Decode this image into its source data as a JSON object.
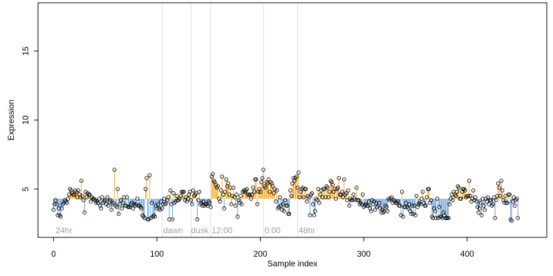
{
  "chart_data": {
    "type": "scatter",
    "xlabel": "Sample index",
    "ylabel": "Expression",
    "xlim": [
      -15,
      477
    ],
    "ylim": [
      1.5,
      18.5
    ],
    "xticks": [
      0,
      100,
      200,
      300,
      400
    ],
    "yticks": [
      5,
      10,
      15
    ],
    "baseline": 4.3,
    "grid": false,
    "legend": "none",
    "colors": {
      "above": "#f5a623",
      "below": "#6a9fd8",
      "divider": "#dddddd",
      "point_stroke": "#000000",
      "region_label": "#a0a0a0"
    },
    "dividers": [
      105,
      133,
      152,
      203,
      236
    ],
    "region_labels": [
      {
        "x": 2,
        "label": "24hr"
      },
      {
        "x": 106,
        "label": "dawn"
      },
      {
        "x": 133,
        "label": "dusk"
      },
      {
        "x": 153,
        "label": "12:00"
      },
      {
        "x": 204,
        "label": "0:00"
      },
      {
        "x": 237,
        "label": "48hr"
      }
    ],
    "series": [
      {
        "values": [
          3.5,
          3.9,
          4.2,
          3.9,
          3.1,
          3.6,
          3.1,
          3.0,
          3.6,
          3.9,
          4.0,
          4.2,
          4.1,
          4.0,
          4.3,
          4.6,
          5.0,
          4.9,
          4.7,
          4.6,
          4.6,
          4.9,
          4.8,
          4.4,
          4.9,
          4.6,
          4.4,
          5.6,
          4.5,
          4.2,
          3.3,
          4.8,
          4.4,
          4.7,
          4.6,
          4.6,
          4.1,
          4.4,
          4.3,
          4.3,
          4.2,
          4.0,
          4.1,
          4.0,
          4.3,
          3.8,
          3.6,
          4.4,
          4.0,
          4.1,
          4.2,
          3.9,
          4.4,
          3.8,
          4.1,
          4.2,
          3.5,
          3.9,
          4.0,
          6.4,
          3.8,
          3.7,
          5.0,
          3.2,
          3.9,
          4.2,
          3.6,
          4.0,
          4.4,
          3.8,
          3.8,
          4.4,
          3.7,
          3.7,
          3.7,
          3.9,
          4.0,
          3.6,
          3.9,
          3.8,
          3.9,
          4.3,
          3.8,
          3.8,
          3.7,
          3.6,
          3.1,
          3.0,
          2.9,
          5.0,
          5.8,
          2.8,
          2.8,
          6.0,
          2.9,
          4.0,
          3.0,
          3.1,
          3.0,
          3.8,
          3.6,
          3.9,
          3.6,
          3.5,
          4.1,
          3.6,
          3.9,
          4.3,
          3.9,
          4.0,
          4.2,
          4.4,
          2.8,
          4.9,
          3.9,
          2.8,
          4.7,
          4.0,
          4.1,
          4.5,
          4.2,
          4.2,
          4.3,
          4.5,
          4.8,
          4.8,
          4.8,
          4.2,
          4.4,
          4.1,
          4.3,
          4.6,
          4.8,
          4.2,
          3.9,
          4.9,
          4.5,
          4.6,
          4.7,
          2.8,
          4.2,
          4.8,
          3.9,
          4.0,
          3.8,
          4.1,
          3.8,
          3.9,
          3.9,
          3.8,
          4.1,
          4.0,
          3.7,
          5.9,
          6.1,
          5.6,
          5.5,
          5.3,
          5.1,
          5.2,
          4.3,
          4.1,
          4.9,
          5.9,
          4.6,
          3.6,
          4.8,
          5.7,
          5.2,
          5.4,
          4.6,
          5.1,
          3.9,
          4.5,
          5.1,
          4.4,
          3.8,
          4.6,
          3.0,
          4.2,
          4.0,
          4.5,
          3.9,
          4.8,
          4.9,
          4.8,
          4.9,
          5.0,
          4.6,
          4.6,
          4.6,
          4.3,
          4.6,
          5.1,
          4.8,
          5.7,
          5.7,
          3.9,
          4.8,
          5.0,
          4.8,
          5.5,
          5.8,
          6.4,
          5.2,
          5.1,
          5.5,
          5.4,
          5.7,
          4.8,
          5.5,
          5.4,
          5.2,
          4.7,
          5.0,
          4.1,
          4.9,
          3.6,
          3.7,
          4.4,
          3.8,
          3.5,
          3.9,
          3.4,
          4.2,
          3.8,
          3.8,
          3.2,
          3.2,
          4.9,
          4.5,
          5.4,
          5.8,
          5.6,
          5.8,
          5.9,
          5.1,
          6.2,
          4.4,
          4.8,
          5.0,
          5.1,
          4.4,
          5.0,
          5.0,
          4.1,
          4.5,
          4.4,
          3.1,
          4.6,
          4.7,
          3.9,
          3.1,
          3.4,
          4.3,
          4.2,
          5.0,
          4.0,
          4.6,
          4.9,
          4.4,
          5.0,
          5.0,
          4.4,
          5.2,
          5.1,
          4.4,
          4.8,
          5.6,
          5.5,
          5.3,
          4.8,
          5.0,
          4.3,
          5.0,
          5.1,
          5.8,
          4.6,
          4.6,
          4.8,
          4.4,
          5.7,
          4.6,
          4.7,
          4.2,
          4.9,
          3.8,
          4.3,
          4.2,
          4.2,
          4.6,
          4.3,
          4.2,
          5.1,
          4.2,
          4.2,
          3.9,
          4.0,
          3.9,
          4.6,
          3.7,
          3.8,
          3.9,
          3.8,
          3.8,
          4.1,
          3.6,
          3.4,
          4.2,
          3.9,
          4.1,
          3.5,
          4.0,
          3.7,
          3.8,
          4.0,
          3.6,
          3.3,
          3.5,
          3.3,
          3.4,
          3.8,
          3.7,
          3.4,
          4.3,
          4.2,
          4.3,
          4.4,
          4.0,
          4.2,
          4.1,
          4.0,
          4.0,
          4.1,
          3.8,
          3.8,
          3.1,
          4.8,
          3.0,
          3.7,
          3.7,
          4.0,
          3.7,
          3.6,
          3.9,
          3.4,
          3.2,
          3.8,
          3.2,
          3.8,
          3.1,
          4.5,
          3.7,
          3.9,
          4.0,
          3.9,
          4.3,
          4.8,
          4.0,
          3.8,
          3.8,
          4.4,
          5.0,
          5.0,
          4.0,
          4.2,
          3.0,
          2.9,
          3.6,
          3.4,
          2.9,
          4.3,
          2.9,
          3.7,
          3.0,
          3.0,
          2.9,
          3.3,
          3.1,
          2.9,
          2.9,
          2.9,
          2.9,
          3.9,
          4.3,
          4.6,
          4.2,
          4.8,
          4.6,
          4.5,
          4.8,
          5.2,
          5.1,
          4.3,
          4.3,
          4.8,
          5.0,
          5.0,
          4.9,
          4.4,
          4.5,
          4.5,
          5.6,
          4.5,
          4.1,
          4.3,
          4.9,
          4.2,
          4.4,
          4.1,
          3.7,
          3.3,
          3.6,
          4.0,
          3.1,
          4.3,
          3.8,
          3.5,
          4.3,
          4.1,
          4.4,
          3.9,
          4.2,
          4.2,
          3.8,
          3.9,
          4.4,
          2.9,
          4.2,
          4.5,
          5.4,
          5.1,
          4.5,
          5.6,
          4.9,
          4.2,
          4.0,
          4.5,
          4.0,
          4.0,
          4.6,
          4.6,
          2.8,
          2.7,
          4.1,
          4.4,
          3.8,
          4.2,
          4.3,
          2.9
        ]
      }
    ]
  }
}
